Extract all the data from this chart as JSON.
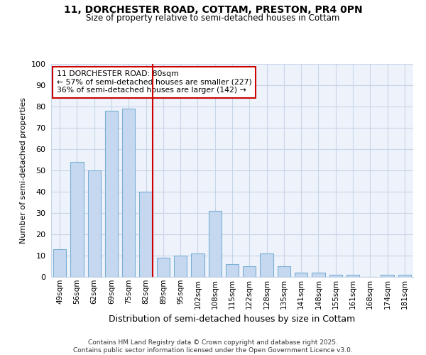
{
  "title1": "11, DORCHESTER ROAD, COTTAM, PRESTON, PR4 0PN",
  "title2": "Size of property relative to semi-detached houses in Cottam",
  "xlabel": "Distribution of semi-detached houses by size in Cottam",
  "ylabel": "Number of semi-detached properties",
  "categories": [
    "49sqm",
    "56sqm",
    "62sqm",
    "69sqm",
    "75sqm",
    "82sqm",
    "89sqm",
    "95sqm",
    "102sqm",
    "108sqm",
    "115sqm",
    "122sqm",
    "128sqm",
    "135sqm",
    "141sqm",
    "148sqm",
    "155sqm",
    "161sqm",
    "168sqm",
    "174sqm",
    "181sqm"
  ],
  "values": [
    13,
    54,
    50,
    78,
    79,
    40,
    9,
    10,
    11,
    31,
    6,
    5,
    11,
    5,
    2,
    2,
    1,
    1,
    0,
    1,
    1
  ],
  "bar_color": "#c5d8f0",
  "bar_edge_color": "#7aafd4",
  "highlight_index": 5,
  "highlight_line_color": "#cc0000",
  "annotation_title": "11 DORCHESTER ROAD: 80sqm",
  "annotation_line1": "← 57% of semi-detached houses are smaller (227)",
  "annotation_line2": "36% of semi-detached houses are larger (142) →",
  "annotation_box_color": "#cc0000",
  "ylim": [
    0,
    100
  ],
  "yticks": [
    0,
    10,
    20,
    30,
    40,
    50,
    60,
    70,
    80,
    90,
    100
  ],
  "footer1": "Contains HM Land Registry data © Crown copyright and database right 2025.",
  "footer2": "Contains public sector information licensed under the Open Government Licence v3.0.",
  "bg_color": "#ffffff",
  "plot_bg_color": "#eef3fb"
}
